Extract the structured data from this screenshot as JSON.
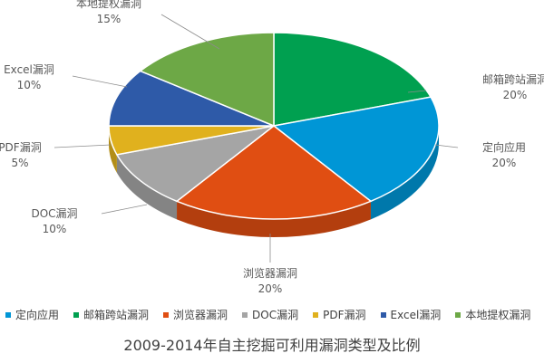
{
  "chart_data": {
    "type": "pie",
    "title": "2009-2014年自主挖掘可利用漏洞类型及比例",
    "slices": [
      {
        "name": "邮箱跨站漏洞",
        "value": 20,
        "label": "20%",
        "color": "#00A050"
      },
      {
        "name": "定向应用",
        "value": 20,
        "label": "20%",
        "color": "#0096D6"
      },
      {
        "name": "浏览器漏洞",
        "value": 20,
        "label": "20%",
        "color": "#E04E12"
      },
      {
        "name": "DOC漏洞",
        "value": 10,
        "label": "10%",
        "color": "#A5A5A5"
      },
      {
        "name": "PDF漏洞",
        "value": 5,
        "label": "5%",
        "color": "#E0B11E"
      },
      {
        "name": "Excel漏洞",
        "value": 10,
        "label": "10%",
        "color": "#2E5AA8"
      },
      {
        "name": "本地提权漏洞",
        "value": 15,
        "label": "15%",
        "color": "#6DA846"
      }
    ],
    "legend": [
      {
        "name": "定向应用",
        "color": "#0096D6"
      },
      {
        "name": "邮箱跨站漏洞",
        "color": "#00A050"
      },
      {
        "name": "浏览器漏洞",
        "color": "#E04E12"
      },
      {
        "name": "DOC漏洞",
        "color": "#A5A5A5"
      },
      {
        "name": "PDF漏洞",
        "color": "#E0B11E"
      },
      {
        "name": "Excel漏洞",
        "color": "#2E5AA8"
      },
      {
        "name": "本地提权漏洞",
        "color": "#6DA846"
      }
    ],
    "legend_position": "bottom",
    "style": "3d"
  }
}
